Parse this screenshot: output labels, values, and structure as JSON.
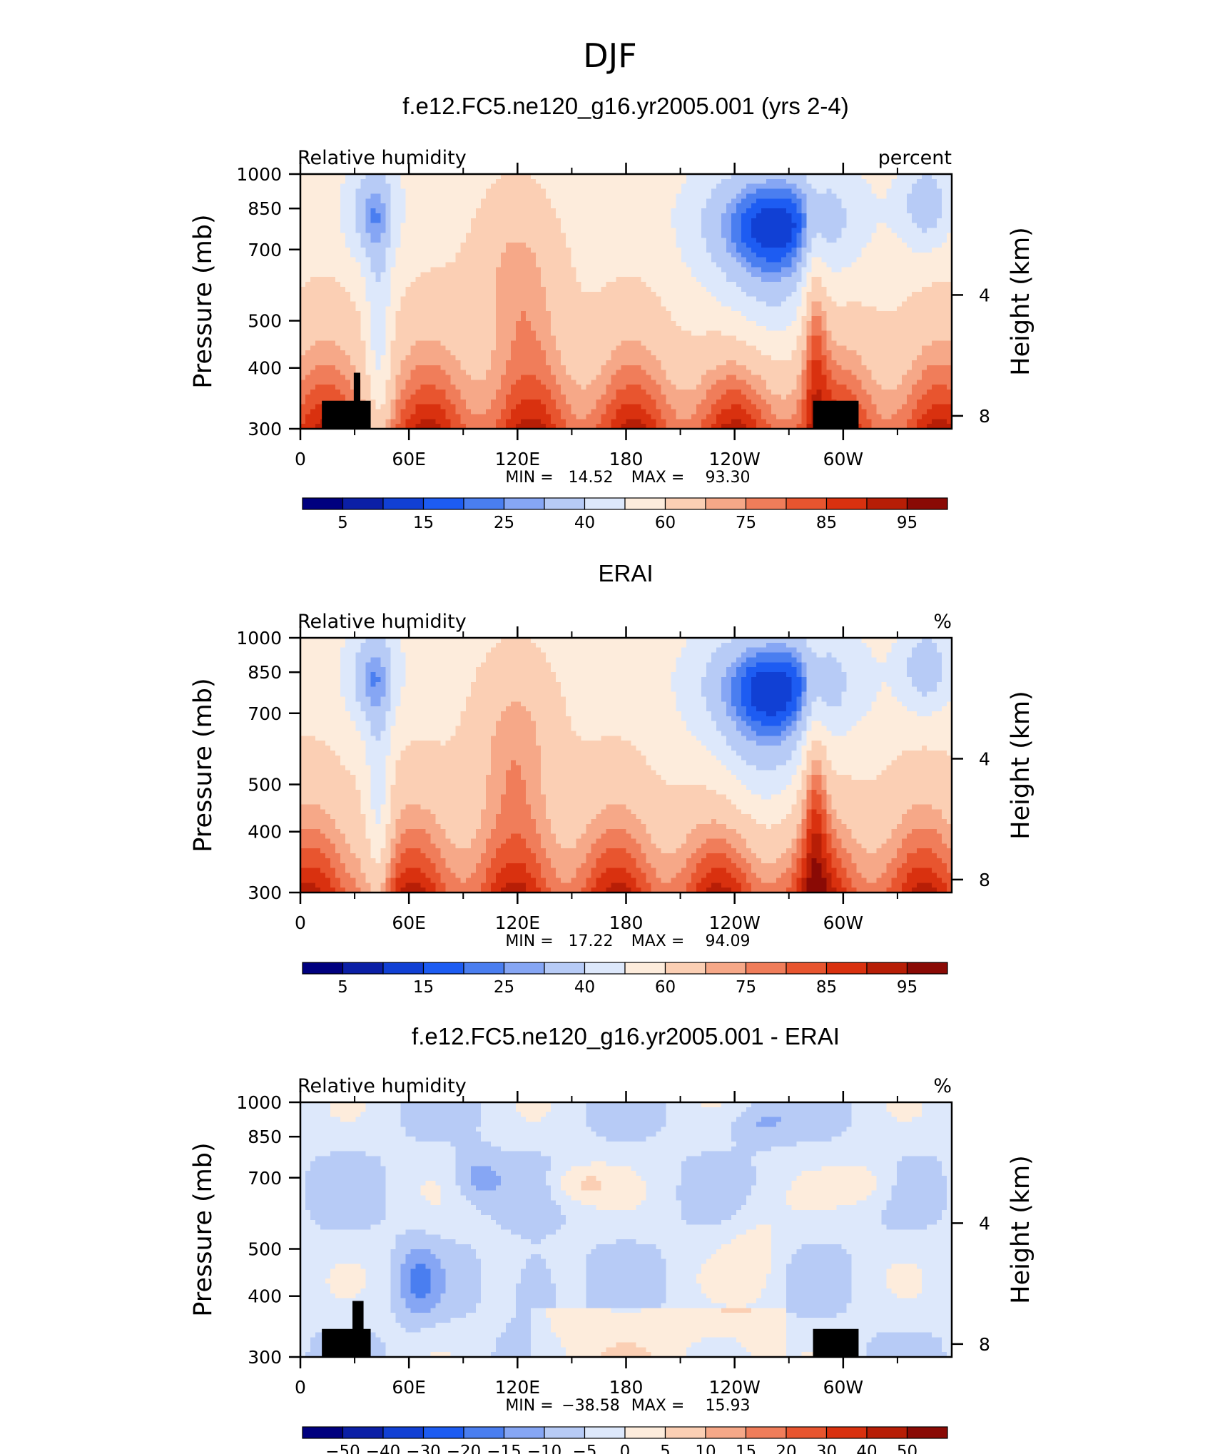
{
  "figure_title": "DJF",
  "colors": {
    "rh_levels": [
      "#00007f",
      "#0b1fa6",
      "#1140d4",
      "#1d5cf2",
      "#4a7ef0",
      "#86a6f4",
      "#b7cbf6",
      "#dde8fb",
      "#fdecdc",
      "#fbcfb4",
      "#f6a888",
      "#f07d5a",
      "#e8552f",
      "#d9310f",
      "#b71e06",
      "#8a0a05"
    ],
    "diff_levels": [
      "#00007f",
      "#0b1fa6",
      "#1140d4",
      "#1d5cf2",
      "#4a7ef0",
      "#86a6f4",
      "#b7cbf6",
      "#dde8fb",
      "#fdecdc",
      "#fbcfb4",
      "#f6a888",
      "#f07d5a",
      "#e8552f",
      "#d9310f",
      "#b71e06",
      "#8a0a05"
    ],
    "land_mask": "#000000"
  },
  "chart_data": [
    {
      "type": "heatmap",
      "title": "f.e12.FC5.ne120_g16.yr2005.001 (yrs 2-4)",
      "left_label": "Relative humidity",
      "right_label": "percent",
      "ylabel": "Pressure (mb)",
      "ylabel_right": "Height (km)",
      "x_ticks": [
        "0",
        "60E",
        "120E",
        "180",
        "120W",
        "60W"
      ],
      "y_ticks": [
        "300",
        "400",
        "500",
        "700",
        "850",
        "1000"
      ],
      "y_ticks_right": [
        "8",
        "4"
      ],
      "y_scale": "log",
      "ylim": [
        1000,
        300
      ],
      "stats": {
        "min_label": "MIN =",
        "min": "14.52",
        "max_label": "MAX =",
        "max": "93.30"
      },
      "colorbar_ticks": [
        "5",
        "15",
        "25",
        "40",
        "60",
        "75",
        "85",
        "95"
      ]
    },
    {
      "type": "heatmap",
      "title": "ERAI",
      "left_label": "Relative humidity",
      "right_label": "%",
      "ylabel": "Pressure (mb)",
      "ylabel_right": "Height (km)",
      "x_ticks": [
        "0",
        "60E",
        "120E",
        "180",
        "120W",
        "60W"
      ],
      "y_ticks": [
        "300",
        "400",
        "500",
        "700",
        "850",
        "1000"
      ],
      "y_ticks_right": [
        "8",
        "4"
      ],
      "y_scale": "log",
      "ylim": [
        1000,
        300
      ],
      "stats": {
        "min_label": "MIN =",
        "min": "17.22",
        "max_label": "MAX =",
        "max": "94.09"
      },
      "colorbar_ticks": [
        "5",
        "15",
        "25",
        "40",
        "60",
        "75",
        "85",
        "95"
      ]
    },
    {
      "type": "heatmap",
      "title": "f.e12.FC5.ne120_g16.yr2005.001 - ERAI",
      "left_label": "Relative humidity",
      "right_label": "%",
      "ylabel": "Pressure (mb)",
      "ylabel_right": "Height (km)",
      "x_ticks": [
        "0",
        "60E",
        "120E",
        "180",
        "120W",
        "60W"
      ],
      "y_ticks": [
        "300",
        "400",
        "500",
        "700",
        "850",
        "1000"
      ],
      "y_ticks_right": [
        "8",
        "4"
      ],
      "y_scale": "log",
      "ylim": [
        1000,
        300
      ],
      "stats": {
        "min_label": "MIN =",
        "min": "−38.58",
        "max_label": "MAX =",
        "max": "15.93"
      },
      "colorbar_ticks": [
        "−50",
        "−40",
        "−30",
        "−20",
        "−15",
        "−10",
        "−5",
        "0",
        "5",
        "10",
        "15",
        "20",
        "30",
        "40",
        "50"
      ]
    }
  ]
}
